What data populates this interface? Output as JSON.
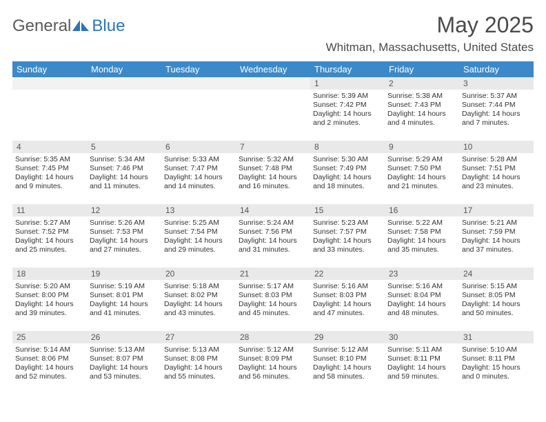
{
  "logo": {
    "text_general": "General",
    "text_blue": "Blue"
  },
  "header": {
    "month_title": "May 2025",
    "location": "Whitman, Massachusetts, United States"
  },
  "colors": {
    "header_bg": "#3b89c9",
    "header_text": "#ffffff",
    "daynum_bg": "#e9e9e9",
    "body_bg": "#ffffff",
    "text": "#333333",
    "logo_gray": "#5a5a5a",
    "logo_blue": "#2a76b8"
  },
  "weekdays": [
    "Sunday",
    "Monday",
    "Tuesday",
    "Wednesday",
    "Thursday",
    "Friday",
    "Saturday"
  ],
  "weeks": [
    [
      null,
      null,
      null,
      null,
      {
        "n": "1",
        "sr": "5:39 AM",
        "ss": "7:42 PM",
        "dl": "14 hours and 2 minutes."
      },
      {
        "n": "2",
        "sr": "5:38 AM",
        "ss": "7:43 PM",
        "dl": "14 hours and 4 minutes."
      },
      {
        "n": "3",
        "sr": "5:37 AM",
        "ss": "7:44 PM",
        "dl": "14 hours and 7 minutes."
      }
    ],
    [
      {
        "n": "4",
        "sr": "5:35 AM",
        "ss": "7:45 PM",
        "dl": "14 hours and 9 minutes."
      },
      {
        "n": "5",
        "sr": "5:34 AM",
        "ss": "7:46 PM",
        "dl": "14 hours and 11 minutes."
      },
      {
        "n": "6",
        "sr": "5:33 AM",
        "ss": "7:47 PM",
        "dl": "14 hours and 14 minutes."
      },
      {
        "n": "7",
        "sr": "5:32 AM",
        "ss": "7:48 PM",
        "dl": "14 hours and 16 minutes."
      },
      {
        "n": "8",
        "sr": "5:30 AM",
        "ss": "7:49 PM",
        "dl": "14 hours and 18 minutes."
      },
      {
        "n": "9",
        "sr": "5:29 AM",
        "ss": "7:50 PM",
        "dl": "14 hours and 21 minutes."
      },
      {
        "n": "10",
        "sr": "5:28 AM",
        "ss": "7:51 PM",
        "dl": "14 hours and 23 minutes."
      }
    ],
    [
      {
        "n": "11",
        "sr": "5:27 AM",
        "ss": "7:52 PM",
        "dl": "14 hours and 25 minutes."
      },
      {
        "n": "12",
        "sr": "5:26 AM",
        "ss": "7:53 PM",
        "dl": "14 hours and 27 minutes."
      },
      {
        "n": "13",
        "sr": "5:25 AM",
        "ss": "7:54 PM",
        "dl": "14 hours and 29 minutes."
      },
      {
        "n": "14",
        "sr": "5:24 AM",
        "ss": "7:56 PM",
        "dl": "14 hours and 31 minutes."
      },
      {
        "n": "15",
        "sr": "5:23 AM",
        "ss": "7:57 PM",
        "dl": "14 hours and 33 minutes."
      },
      {
        "n": "16",
        "sr": "5:22 AM",
        "ss": "7:58 PM",
        "dl": "14 hours and 35 minutes."
      },
      {
        "n": "17",
        "sr": "5:21 AM",
        "ss": "7:59 PM",
        "dl": "14 hours and 37 minutes."
      }
    ],
    [
      {
        "n": "18",
        "sr": "5:20 AM",
        "ss": "8:00 PM",
        "dl": "14 hours and 39 minutes."
      },
      {
        "n": "19",
        "sr": "5:19 AM",
        "ss": "8:01 PM",
        "dl": "14 hours and 41 minutes."
      },
      {
        "n": "20",
        "sr": "5:18 AM",
        "ss": "8:02 PM",
        "dl": "14 hours and 43 minutes."
      },
      {
        "n": "21",
        "sr": "5:17 AM",
        "ss": "8:03 PM",
        "dl": "14 hours and 45 minutes."
      },
      {
        "n": "22",
        "sr": "5:16 AM",
        "ss": "8:03 PM",
        "dl": "14 hours and 47 minutes."
      },
      {
        "n": "23",
        "sr": "5:16 AM",
        "ss": "8:04 PM",
        "dl": "14 hours and 48 minutes."
      },
      {
        "n": "24",
        "sr": "5:15 AM",
        "ss": "8:05 PM",
        "dl": "14 hours and 50 minutes."
      }
    ],
    [
      {
        "n": "25",
        "sr": "5:14 AM",
        "ss": "8:06 PM",
        "dl": "14 hours and 52 minutes."
      },
      {
        "n": "26",
        "sr": "5:13 AM",
        "ss": "8:07 PM",
        "dl": "14 hours and 53 minutes."
      },
      {
        "n": "27",
        "sr": "5:13 AM",
        "ss": "8:08 PM",
        "dl": "14 hours and 55 minutes."
      },
      {
        "n": "28",
        "sr": "5:12 AM",
        "ss": "8:09 PM",
        "dl": "14 hours and 56 minutes."
      },
      {
        "n": "29",
        "sr": "5:12 AM",
        "ss": "8:10 PM",
        "dl": "14 hours and 58 minutes."
      },
      {
        "n": "30",
        "sr": "5:11 AM",
        "ss": "8:11 PM",
        "dl": "14 hours and 59 minutes."
      },
      {
        "n": "31",
        "sr": "5:10 AM",
        "ss": "8:11 PM",
        "dl": "15 hours and 0 minutes."
      }
    ]
  ],
  "labels": {
    "sunrise": "Sunrise:",
    "sunset": "Sunset:",
    "daylight": "Daylight:"
  }
}
